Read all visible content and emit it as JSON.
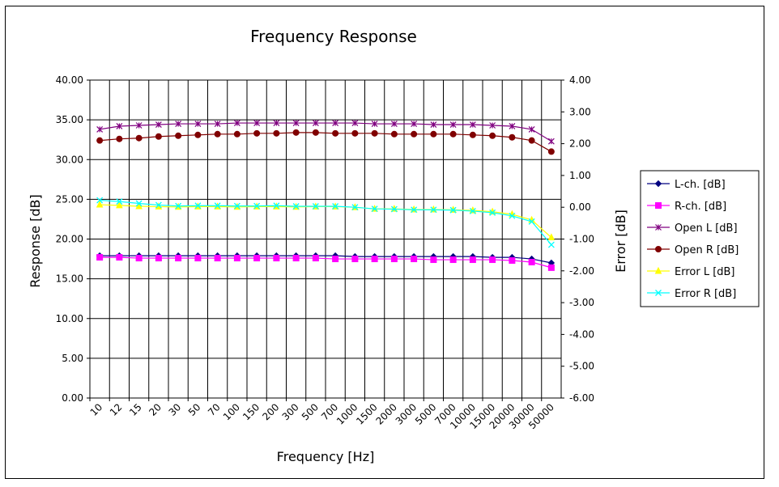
{
  "chart_data": {
    "type": "line",
    "title": "Frequency Response",
    "xlabel": "Frequency [Hz]",
    "ylabel": "Response [dB]",
    "y2label": "Error [dB]",
    "categories": [
      "10",
      "12",
      "15",
      "20",
      "30",
      "50",
      "70",
      "100",
      "150",
      "200",
      "300",
      "500",
      "700",
      "1000",
      "1500",
      "2000",
      "3000",
      "5000",
      "7000",
      "10000",
      "15000",
      "20000",
      "30000",
      "50000"
    ],
    "ylim": [
      0,
      40
    ],
    "y2lim": [
      -6,
      4
    ],
    "yticks": [
      "0.00",
      "5.00",
      "10.00",
      "15.00",
      "20.00",
      "25.00",
      "30.00",
      "35.00",
      "40.00"
    ],
    "y2ticks": [
      "-6.00",
      "-5.00",
      "-4.00",
      "-3.00",
      "-2.00",
      "-1.00",
      "0.00",
      "1.00",
      "2.00",
      "3.00",
      "4.00"
    ],
    "grid": true,
    "legend_position": "right",
    "series": [
      {
        "name": "L-ch. [dB]",
        "axis": "left",
        "color": "#000080",
        "marker": "diamond",
        "values": [
          17.9,
          17.9,
          17.9,
          17.9,
          17.9,
          17.9,
          17.9,
          17.9,
          17.9,
          17.9,
          17.9,
          17.9,
          17.9,
          17.8,
          17.8,
          17.8,
          17.8,
          17.8,
          17.8,
          17.8,
          17.7,
          17.7,
          17.5,
          17.0
        ]
      },
      {
        "name": "R-ch. [dB]",
        "axis": "left",
        "color": "#ff00ff",
        "marker": "square",
        "values": [
          17.7,
          17.7,
          17.6,
          17.6,
          17.6,
          17.6,
          17.6,
          17.6,
          17.6,
          17.6,
          17.6,
          17.6,
          17.5,
          17.5,
          17.5,
          17.5,
          17.5,
          17.4,
          17.4,
          17.4,
          17.4,
          17.3,
          17.1,
          16.4
        ]
      },
      {
        "name": "Open L [dB]",
        "axis": "left",
        "color": "#800080",
        "marker": "star",
        "values": [
          33.8,
          34.2,
          34.3,
          34.4,
          34.5,
          34.5,
          34.5,
          34.6,
          34.6,
          34.6,
          34.6,
          34.6,
          34.6,
          34.6,
          34.5,
          34.5,
          34.5,
          34.4,
          34.4,
          34.4,
          34.3,
          34.2,
          33.8,
          32.3
        ]
      },
      {
        "name": "Open R [dB]",
        "axis": "left",
        "color": "#800000",
        "marker": "circle",
        "values": [
          32.4,
          32.6,
          32.7,
          32.9,
          33.0,
          33.1,
          33.2,
          33.2,
          33.3,
          33.3,
          33.4,
          33.4,
          33.3,
          33.3,
          33.3,
          33.2,
          33.2,
          33.2,
          33.2,
          33.1,
          33.0,
          32.8,
          32.4,
          31.0
        ]
      },
      {
        "name": "Error L [dB]",
        "axis": "right",
        "color": "#ffff00",
        "marker": "triangle",
        "values": [
          0.08,
          0.06,
          0.03,
          0.02,
          0.01,
          0.02,
          0.02,
          0.01,
          0.02,
          0.02,
          0.01,
          0.02,
          0.02,
          0.0,
          -0.05,
          -0.05,
          -0.07,
          -0.07,
          -0.08,
          -0.1,
          -0.14,
          -0.22,
          -0.4,
          -0.95
        ]
      },
      {
        "name": "Error R [dB]",
        "axis": "right",
        "color": "#00ffff",
        "marker": "x",
        "values": [
          0.22,
          0.18,
          0.12,
          0.07,
          0.04,
          0.05,
          0.05,
          0.04,
          0.04,
          0.05,
          0.03,
          0.03,
          0.03,
          0.0,
          -0.05,
          -0.06,
          -0.08,
          -0.08,
          -0.09,
          -0.12,
          -0.17,
          -0.27,
          -0.45,
          -1.18
        ]
      }
    ]
  }
}
